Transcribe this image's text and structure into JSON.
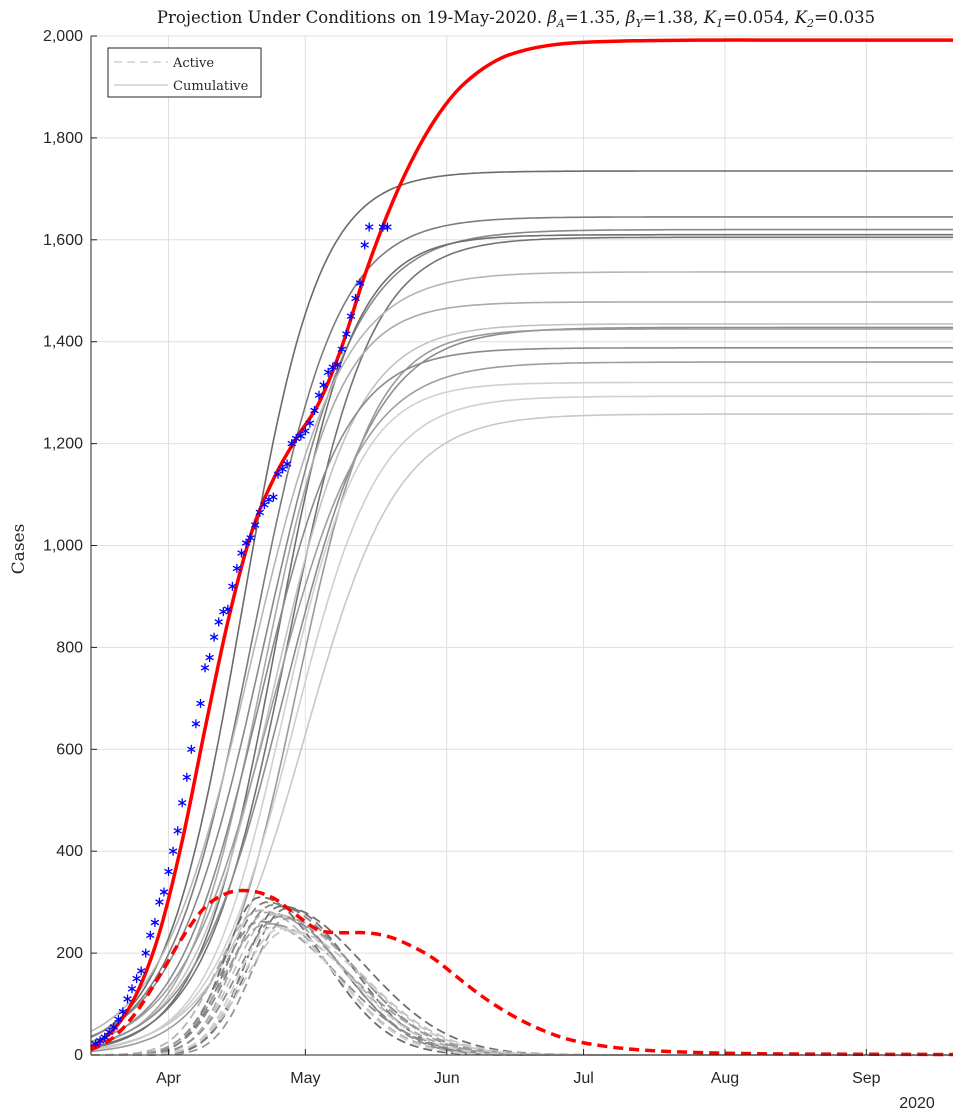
{
  "chart_data": {
    "type": "line",
    "title": "Projection Under Conditions on 19-May-2020. β_A =1.35, β_Y =1.38, K_1 =0.054, K_2 =0.035",
    "title_parts": {
      "prefix": "Projection Under Conditions on 19-May-2020.",
      "beta_a_sym": "β",
      "beta_a_sub": "A",
      "beta_a_val": "=1.35,",
      "beta_y_sym": "β",
      "beta_y_sub": "Y",
      "beta_y_val": "=1.38,",
      "k1_sym": "K",
      "k1_sub": "1",
      "k1_val": "=0.054,",
      "k2_sym": "K",
      "k2_sub": "2",
      "k2_val": "=0.035"
    },
    "xlabel": "",
    "ylabel": "Cases",
    "x_year_label": "2020",
    "x_range": [
      "2020-03-15",
      "2020-09-20"
    ],
    "ylim": [
      0,
      2000
    ],
    "grid": true,
    "legend": {
      "placement": "top-left",
      "entries": [
        {
          "label": "Active",
          "style": "dashed"
        },
        {
          "label": "Cumulative",
          "style": "solid"
        }
      ]
    },
    "x_ticks": [
      {
        "label": "Apr",
        "date": "2020-04-01"
      },
      {
        "label": "May",
        "date": "2020-05-01"
      },
      {
        "label": "Jun",
        "date": "2020-06-01"
      },
      {
        "label": "Jul",
        "date": "2020-07-01"
      },
      {
        "label": "Aug",
        "date": "2020-08-01"
      },
      {
        "label": "Sep",
        "date": "2020-09-01"
      }
    ],
    "y_ticks": [
      {
        "value": 0,
        "label": "0"
      },
      {
        "value": 200,
        "label": "200"
      },
      {
        "value": 400,
        "label": "400"
      },
      {
        "value": 600,
        "label": "600"
      },
      {
        "value": 800,
        "label": "800"
      },
      {
        "value": 1000,
        "label": "1,000"
      },
      {
        "value": 1200,
        "label": "1,200"
      },
      {
        "value": 1400,
        "label": "1,400"
      },
      {
        "value": 1600,
        "label": "1,600"
      },
      {
        "value": 1800,
        "label": "1,800"
      },
      {
        "value": 2000,
        "label": "2,000"
      }
    ],
    "colors": {
      "projection": "#ff0000",
      "observed": "#0000ff",
      "ensemble_gray": "#808080"
    },
    "cumulative_projection": {
      "x": [
        "2020-03-15",
        "2020-03-20",
        "2020-03-25",
        "2020-03-30",
        "2020-04-04",
        "2020-04-09",
        "2020-04-14",
        "2020-04-19",
        "2020-04-24",
        "2020-04-29",
        "2020-05-04",
        "2020-05-09",
        "2020-05-14",
        "2020-05-19",
        "2020-05-24",
        "2020-05-29",
        "2020-06-03",
        "2020-06-08",
        "2020-06-13",
        "2020-06-18",
        "2020-06-23",
        "2020-06-28",
        "2020-07-05",
        "2020-07-15",
        "2020-07-30",
        "2020-08-15",
        "2020-09-20"
      ],
      "values": [
        15,
        50,
        120,
        240,
        420,
        640,
        850,
        1020,
        1130,
        1210,
        1280,
        1390,
        1530,
        1650,
        1750,
        1830,
        1890,
        1930,
        1957,
        1972,
        1981,
        1986,
        1989,
        1991,
        1992,
        1992,
        1992
      ]
    },
    "active_projection": {
      "x": [
        "2020-03-15",
        "2020-03-20",
        "2020-03-25",
        "2020-03-30",
        "2020-04-04",
        "2020-04-09",
        "2020-04-14",
        "2020-04-19",
        "2020-04-24",
        "2020-04-29",
        "2020-05-04",
        "2020-05-09",
        "2020-05-14",
        "2020-05-19",
        "2020-05-24",
        "2020-05-29",
        "2020-06-03",
        "2020-06-08",
        "2020-06-13",
        "2020-06-18",
        "2020-06-23",
        "2020-06-28",
        "2020-07-05",
        "2020-07-15",
        "2020-07-30",
        "2020-08-15",
        "2020-09-20"
      ],
      "values": [
        10,
        35,
        85,
        155,
        230,
        290,
        318,
        322,
        308,
        275,
        245,
        240,
        240,
        233,
        215,
        190,
        155,
        120,
        90,
        65,
        45,
        30,
        18,
        9,
        4,
        2,
        1
      ]
    },
    "observed_cumulative": {
      "x": [
        "2020-03-16",
        "2020-03-17",
        "2020-03-18",
        "2020-03-19",
        "2020-03-20",
        "2020-03-21",
        "2020-03-22",
        "2020-03-23",
        "2020-03-24",
        "2020-03-25",
        "2020-03-26",
        "2020-03-27",
        "2020-03-28",
        "2020-03-29",
        "2020-03-30",
        "2020-03-31",
        "2020-04-01",
        "2020-04-02",
        "2020-04-03",
        "2020-04-04",
        "2020-04-05",
        "2020-04-06",
        "2020-04-07",
        "2020-04-08",
        "2020-04-09",
        "2020-04-10",
        "2020-04-11",
        "2020-04-12",
        "2020-04-13",
        "2020-04-14",
        "2020-04-15",
        "2020-04-16",
        "2020-04-17",
        "2020-04-18",
        "2020-04-19",
        "2020-04-20",
        "2020-04-21",
        "2020-04-22",
        "2020-04-23",
        "2020-04-24",
        "2020-04-25",
        "2020-04-26",
        "2020-04-27",
        "2020-04-28",
        "2020-04-29",
        "2020-04-30",
        "2020-05-01",
        "2020-05-02",
        "2020-05-03",
        "2020-05-04",
        "2020-05-05",
        "2020-05-06",
        "2020-05-07",
        "2020-05-08",
        "2020-05-09",
        "2020-05-10",
        "2020-05-11",
        "2020-05-12",
        "2020-05-13",
        "2020-05-14",
        "2020-05-15",
        "2020-05-18",
        "2020-05-19"
      ],
      "values": [
        22,
        28,
        35,
        45,
        55,
        70,
        85,
        110,
        130,
        150,
        165,
        200,
        235,
        260,
        300,
        320,
        360,
        400,
        440,
        495,
        545,
        600,
        650,
        690,
        760,
        780,
        820,
        850,
        870,
        875,
        920,
        955,
        985,
        1005,
        1015,
        1040,
        1065,
        1080,
        1090,
        1095,
        1140,
        1150,
        1160,
        1200,
        1210,
        1215,
        1225,
        1240,
        1265,
        1295,
        1315,
        1340,
        1350,
        1355,
        1385,
        1415,
        1450,
        1485,
        1515,
        1590,
        1625,
        1625,
        1625
      ]
    },
    "ensemble_cumulative_plateaus": [
      1735,
      1645,
      1620,
      1610,
      1605,
      1537,
      1478,
      1435,
      1428,
      1425,
      1388,
      1360,
      1320,
      1293,
      1258
    ],
    "ensemble_active_peaks": [
      310,
      300,
      295,
      292,
      288,
      284,
      280,
      276,
      272,
      268,
      262,
      258,
      252,
      248,
      245
    ]
  }
}
